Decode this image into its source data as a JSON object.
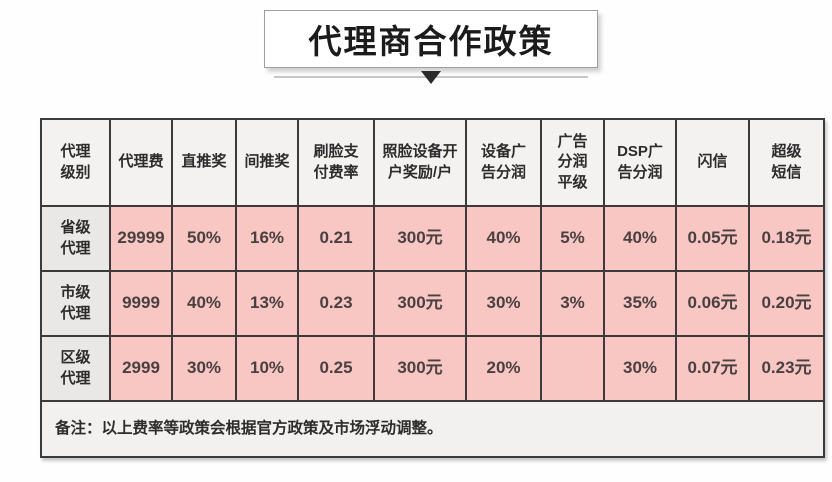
{
  "title": "代理商合作政策",
  "colors": {
    "data_cell_bg": "#f8c7c4",
    "label_cell_bg": "#e9e8e6",
    "header_cell_bg": "#f3f2f0",
    "note_row_bg": "#f2f1ef",
    "table_border": "#3d3a3a",
    "title_text": "#1b1b1b",
    "data_text": "#4a4040"
  },
  "chart_data": {
    "type": "table",
    "title": "代理商合作政策",
    "columns": [
      "代理\n级别",
      "代理费",
      "直推奖",
      "间推奖",
      "刷脸支\n付费率",
      "照脸设备开\n户奖励/户",
      "设备广\n告分润",
      "广告\n分润\n平级",
      "DSP广\n告分润",
      "闪信",
      "超级\n短信"
    ],
    "rows": [
      {
        "level": "省级\n代理",
        "values": [
          "29999",
          "50%",
          "16%",
          "0.21",
          "300元",
          "40%",
          "5%",
          "40%",
          "0.05元",
          "0.18元"
        ]
      },
      {
        "level": "市级\n代理",
        "values": [
          "9999",
          "40%",
          "13%",
          "0.23",
          "300元",
          "30%",
          "3%",
          "35%",
          "0.06元",
          "0.20元"
        ]
      },
      {
        "level": "区级\n代理",
        "values": [
          "2999",
          "30%",
          "10%",
          "0.25",
          "300元",
          "20%",
          "",
          "30%",
          "0.07元",
          "0.23元"
        ]
      }
    ],
    "note": "备注：以上费率等政策会根据官方政策及市场浮动调整。"
  }
}
